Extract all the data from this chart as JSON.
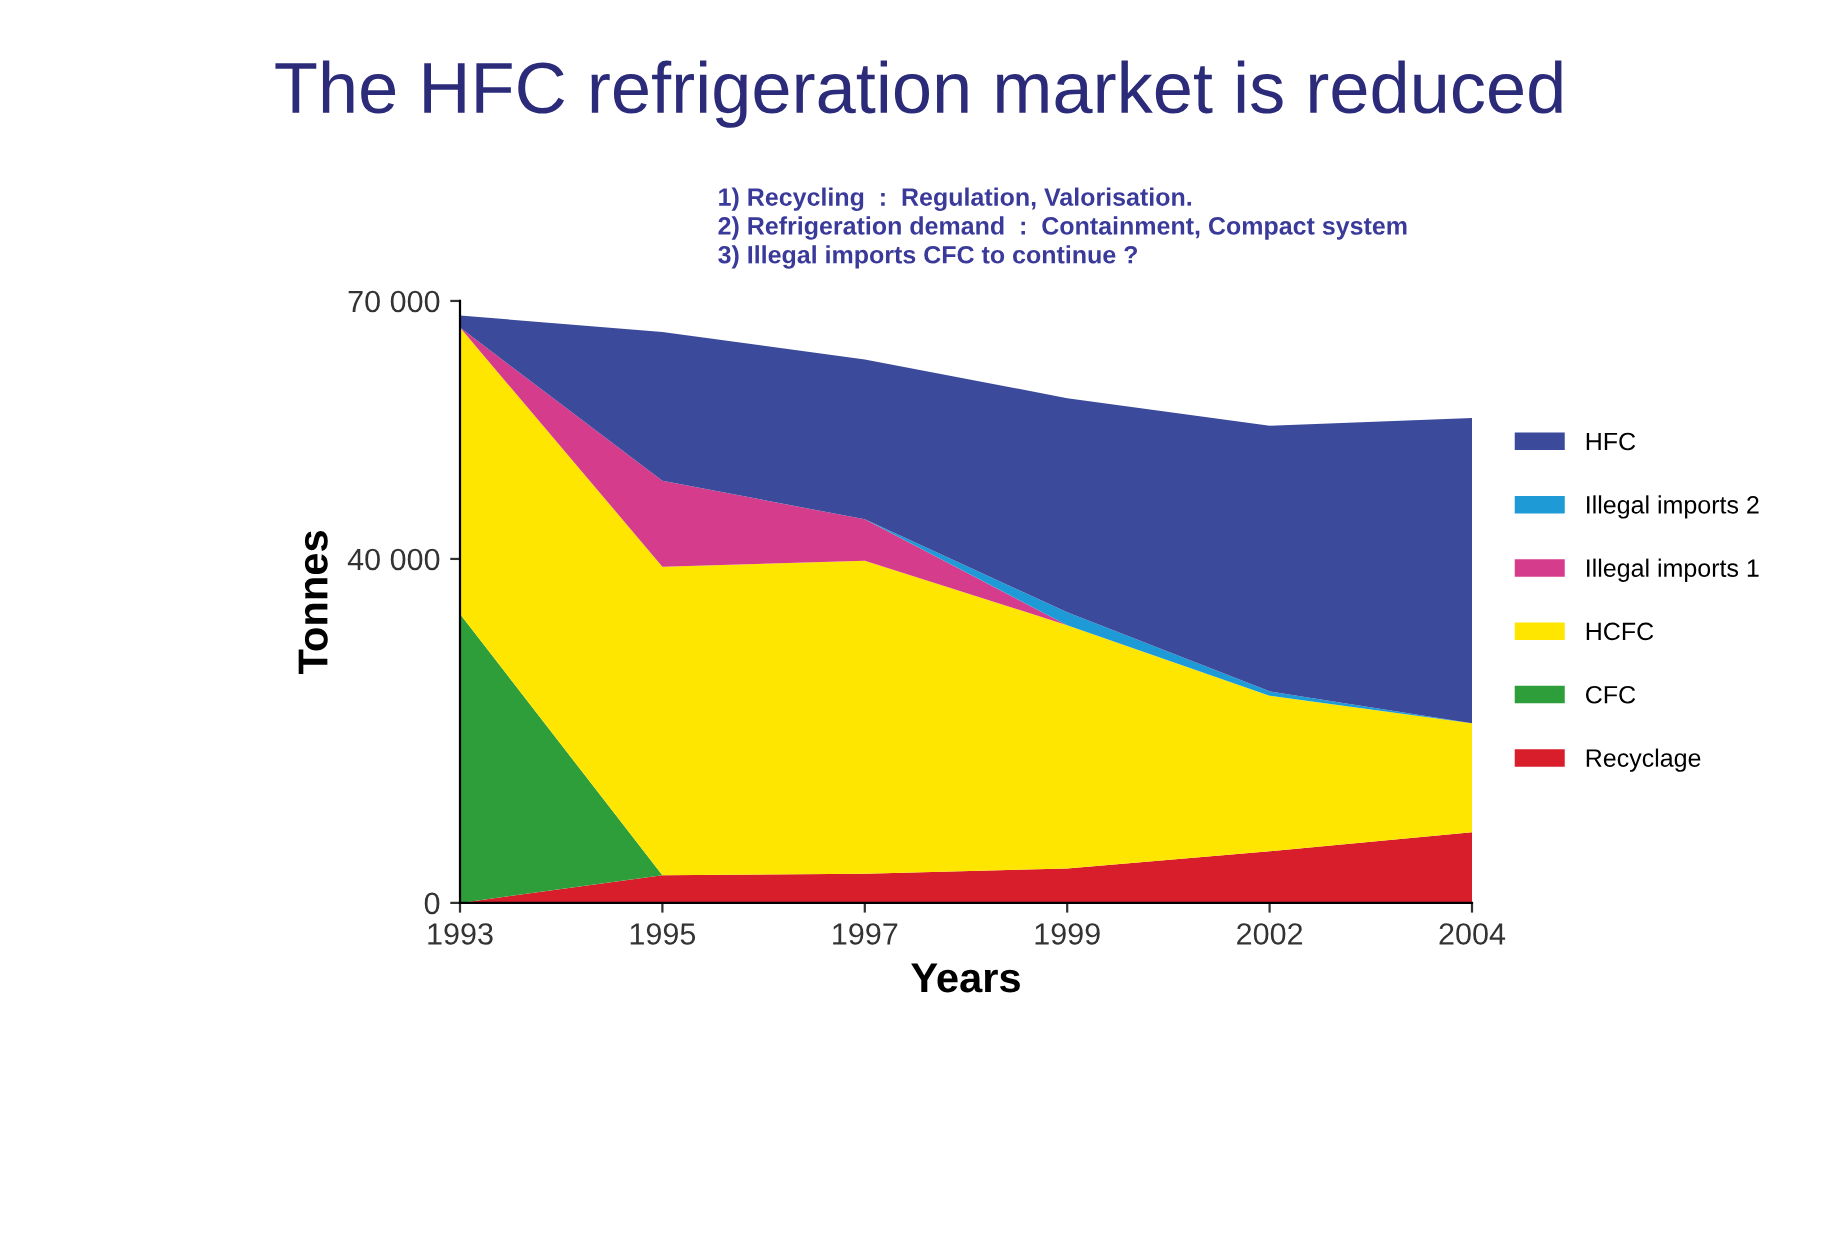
{
  "chart_data": {
    "type": "area",
    "stacked": true,
    "title": "The HFC refrigeration market is reduced",
    "subtitle": "1) Recycling  :  Regulation, Valorisation.\n2) Refrigeration demand  :  Containment, Compact system\n3) Illegal imports CFC to continue ?",
    "xlabel": "Years",
    "ylabel": "Tonnes",
    "categories": [
      "1993",
      "1995",
      "1997",
      "1999",
      "2002",
      "2004"
    ],
    "series": [
      {
        "name": "Recyclage",
        "color": "#d81e2a",
        "values": [
          0,
          3200,
          3400,
          4000,
          6000,
          8200
        ]
      },
      {
        "name": "CFC",
        "color": "#2e9e3a",
        "values": [
          33600,
          0,
          0,
          0,
          0,
          0
        ]
      },
      {
        "name": "HCFC",
        "color": "#ffe600",
        "values": [
          33300,
          35900,
          36400,
          28300,
          18100,
          12700
        ]
      },
      {
        "name": "Illegal imports 1",
        "color": "#d63c8c",
        "values": [
          0,
          10000,
          4800,
          0,
          0,
          0
        ]
      },
      {
        "name": "Illegal imports 2",
        "color": "#1e9ad6",
        "values": [
          null,
          null,
          0,
          1500,
          500,
          0
        ]
      },
      {
        "name": "HFC",
        "color": "#3b4a9a",
        "values": [
          1400,
          17300,
          18600,
          24900,
          30900,
          35500
        ]
      }
    ],
    "ylim": [
      0,
      70000
    ],
    "yticks": [
      0,
      {
        "value": 40000,
        "label": "40 000"
      },
      {
        "value": 70000,
        "label": "70 000"
      }
    ],
    "grid": false,
    "legend": "right"
  }
}
